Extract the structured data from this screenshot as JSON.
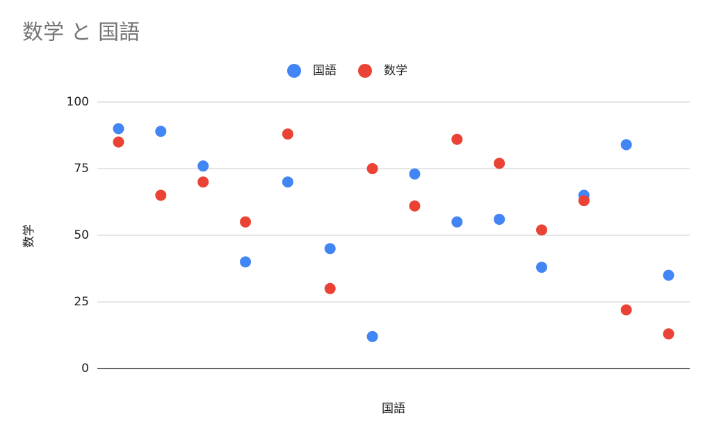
{
  "chart_data": {
    "type": "scatter",
    "title": "数学 と 国語",
    "x_label": "国語",
    "y_label": "数学",
    "categories": [
      null,
      null,
      null,
      null,
      null,
      null,
      null,
      null,
      null,
      null,
      null,
      null,
      null,
      null
    ],
    "series": [
      {
        "name": "国語",
        "color": "#4285f4",
        "values": [
          90,
          89,
          76,
          40,
          70,
          45,
          12,
          73,
          55,
          56,
          38,
          65,
          84,
          35
        ]
      },
      {
        "name": "数学",
        "color": "#ea4335",
        "values": [
          85,
          65,
          70,
          55,
          88,
          30,
          75,
          61,
          86,
          77,
          52,
          63,
          22,
          13
        ]
      }
    ],
    "ylim": [
      0,
      100
    ],
    "yticks": [
      0,
      25,
      50,
      75,
      100
    ],
    "grid": true,
    "legend": "top"
  }
}
